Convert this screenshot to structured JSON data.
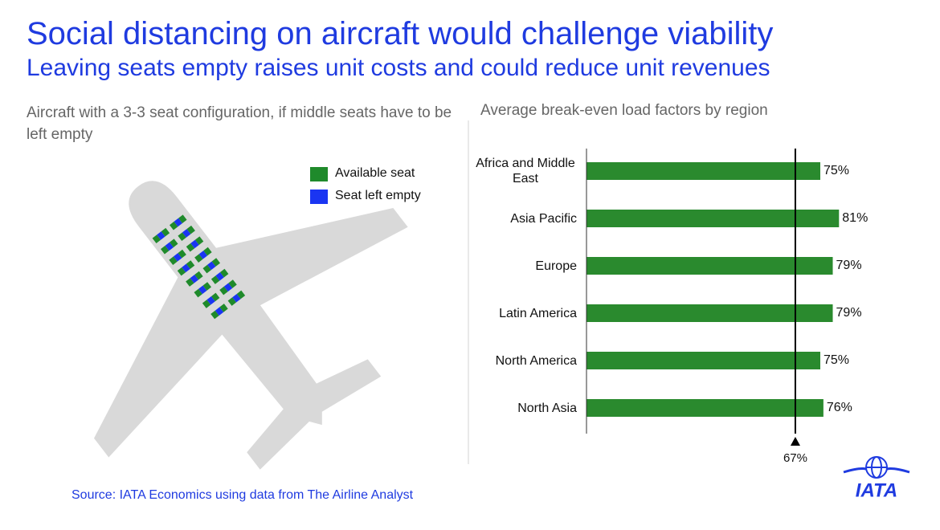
{
  "header": {
    "title": "Social distancing on aircraft would challenge viability",
    "subtitle": "Leaving seats empty raises unit costs and could reduce unit revenues"
  },
  "left_panel": {
    "caption": "Aircraft with a 3-3 seat configuration, if middle seats have to be left empty",
    "legend": [
      {
        "name": "Available seat",
        "color": "#1f8a2b"
      },
      {
        "name": "Seat left empty",
        "color": "#1a35f2"
      }
    ]
  },
  "chart_data": {
    "type": "bar",
    "orientation": "horizontal",
    "title": "Average break-even load factors by region",
    "categories": [
      "Africa and Middle East",
      "Asia Pacific",
      "Europe",
      "Latin America",
      "North America",
      "North Asia"
    ],
    "values": [
      75,
      81,
      79,
      79,
      75,
      76
    ],
    "value_labels": [
      "75%",
      "81%",
      "79%",
      "79%",
      "75%",
      "76%"
    ],
    "color": "#2a8a2e",
    "xlim": [
      0,
      100
    ],
    "reference_line": {
      "value": 67,
      "label": "67%"
    }
  },
  "source": "Source: IATA Economics using data from The Airline Analyst",
  "logo": "IATA"
}
